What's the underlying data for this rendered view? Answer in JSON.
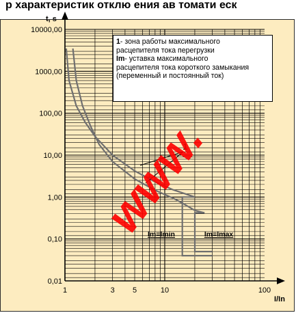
{
  "header": {
    "partial_title": "р характеристик отклю ения ав томати еск"
  },
  "colors": {
    "background": "#fdecc0",
    "curve": "#6f6f6f",
    "grid": "#000000",
    "watermark": "#ff0000"
  },
  "watermark": "www.",
  "legend": {
    "entry1_key": "1",
    "entry1_text": "- зона работы максимального",
    "entry1_text2": "расцепителя тока перегрузки",
    "entry2_key": "Im",
    "entry2_text": "- уставка максимального",
    "entry2_text2": "расцепителя тока короткого замыкания",
    "entry2_text3": "(переменный и постоянный ток)"
  },
  "chart_data": {
    "type": "line",
    "xscale": "log",
    "yscale": "log",
    "xlabel": "I/In",
    "ylabel": "t, s",
    "xlim": [
      1,
      100
    ],
    "ylim": [
      0.01,
      10000
    ],
    "grid": true,
    "x_ticks": [
      {
        "value": 1,
        "label": "1"
      },
      {
        "value": 3,
        "label": "3"
      },
      {
        "value": 5,
        "label": "5"
      },
      {
        "value": 10,
        "label": "10"
      },
      {
        "value": 100,
        "label": "100"
      }
    ],
    "y_ticks": [
      {
        "value": 0.01,
        "label": "0,01"
      },
      {
        "value": 0.1,
        "label": "0,10"
      },
      {
        "value": 1,
        "label": "1,00"
      },
      {
        "value": 10,
        "label": "10,00"
      },
      {
        "value": 100,
        "label": "100,00"
      },
      {
        "value": 1000,
        "label": "1000,00"
      },
      {
        "value": 10000,
        "label": "10000,00"
      }
    ],
    "series": [
      {
        "points": [
          [
            1.03,
            3500
          ],
          [
            1.1,
            600
          ],
          [
            1.3,
            150
          ],
          [
            1.6,
            60
          ],
          [
            2,
            28
          ],
          [
            3,
            10
          ],
          [
            5,
            4.2
          ],
          [
            8,
            2.3
          ],
          [
            12,
            1.5
          ],
          [
            20,
            1.0
          ]
        ]
      },
      {
        "points": [
          [
            1.2,
            3500
          ],
          [
            1.3,
            600
          ],
          [
            1.5,
            150
          ],
          [
            1.8,
            50
          ],
          [
            2.2,
            18
          ],
          [
            3,
            7
          ],
          [
            5,
            2.7
          ],
          [
            8,
            1.45
          ],
          [
            12,
            0.95
          ],
          [
            15,
            0.72
          ],
          [
            20,
            0.48
          ],
          [
            25,
            0.42
          ]
        ]
      }
    ],
    "cutoffs": [
      {
        "label": "Im=Imin",
        "x_from": 15,
        "x_to": 30,
        "y_low": 0.04
      },
      {
        "label": "Im=Imax",
        "x_from": 20,
        "x_to": 30,
        "y_low": 0.05
      }
    ],
    "annotations": [
      {
        "label": "1",
        "x": 18,
        "y": 17
      }
    ]
  }
}
